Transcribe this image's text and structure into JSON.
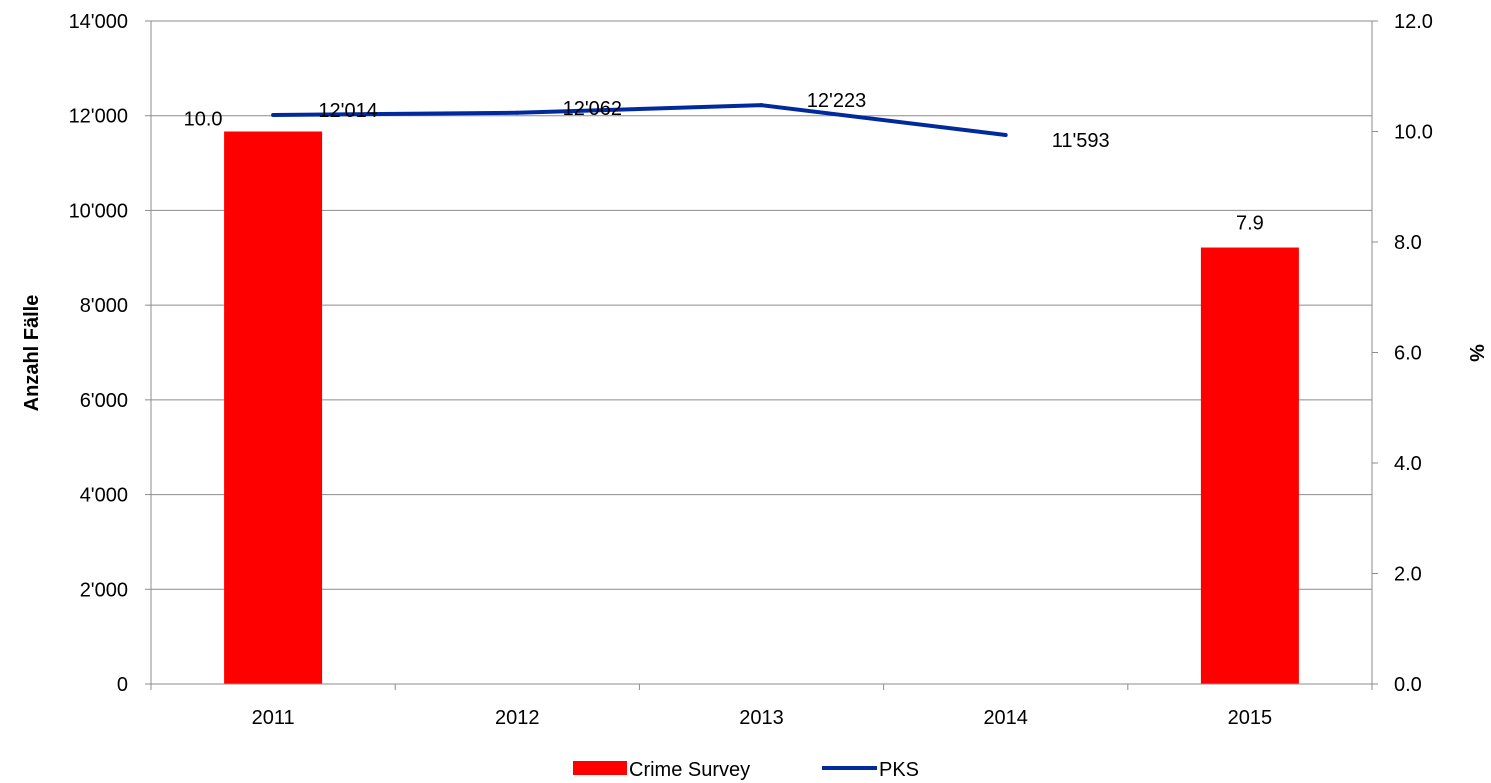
{
  "chart_data": {
    "type": "bar+line",
    "categories": [
      "2011",
      "2012",
      "2013",
      "2014",
      "2015"
    ],
    "y_left": {
      "label": "Anzahl Fälle",
      "range": [
        0,
        14000
      ],
      "ticks": [
        "0",
        "2'000",
        "4'000",
        "6'000",
        "8'000",
        "10'000",
        "12'000",
        "14'000"
      ],
      "tick_values": [
        0,
        2000,
        4000,
        6000,
        8000,
        10000,
        12000,
        14000
      ]
    },
    "y_right": {
      "label": "%",
      "range": [
        0,
        12
      ],
      "ticks": [
        "0.0",
        "2.0",
        "4.0",
        "6.0",
        "8.0",
        "10.0",
        "12.0"
      ],
      "tick_values": [
        0,
        2,
        4,
        6,
        8,
        10,
        12
      ]
    },
    "series": [
      {
        "name": "Crime Survey",
        "type": "bar",
        "axis": "right",
        "color": "#ff0000",
        "values": [
          10.0,
          null,
          null,
          null,
          7.9
        ],
        "labels": [
          "10.0",
          "",
          "",
          "",
          "7.9"
        ]
      },
      {
        "name": "PKS",
        "type": "line",
        "axis": "left",
        "color": "#002a9c",
        "values": [
          12014,
          12062,
          12223,
          11593,
          null
        ],
        "labels": [
          "12'014",
          "12'062",
          "12'223",
          "11'593",
          ""
        ]
      }
    ],
    "grid": "horizontal",
    "legend_position": "bottom"
  }
}
